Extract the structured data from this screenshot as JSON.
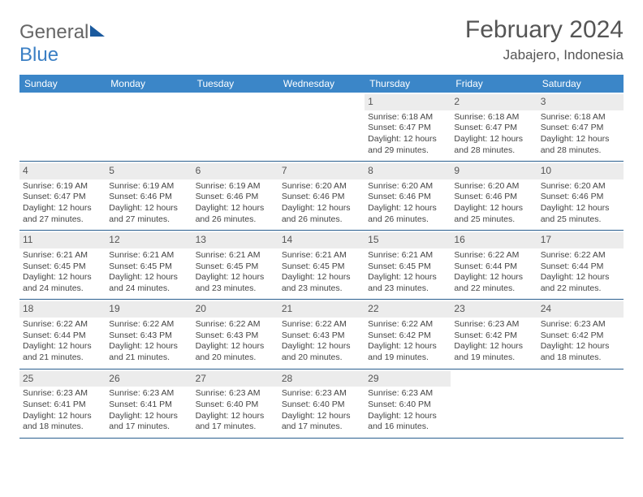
{
  "logo": {
    "text1": "General",
    "text2": "Blue"
  },
  "title": "February 2024",
  "location": "Jabajero, Indonesia",
  "colors": {
    "header_bg": "#3b86c8",
    "header_text": "#ffffff",
    "date_bg": "#ececec",
    "border": "#2a5f8f",
    "body_text": "#444444",
    "page_bg": "#ffffff"
  },
  "day_names": [
    "Sunday",
    "Monday",
    "Tuesday",
    "Wednesday",
    "Thursday",
    "Friday",
    "Saturday"
  ],
  "weeks": [
    [
      null,
      null,
      null,
      null,
      {
        "d": "1",
        "sr": "Sunrise: 6:18 AM",
        "ss": "Sunset: 6:47 PM",
        "dl1": "Daylight: 12 hours",
        "dl2": "and 29 minutes."
      },
      {
        "d": "2",
        "sr": "Sunrise: 6:18 AM",
        "ss": "Sunset: 6:47 PM",
        "dl1": "Daylight: 12 hours",
        "dl2": "and 28 minutes."
      },
      {
        "d": "3",
        "sr": "Sunrise: 6:18 AM",
        "ss": "Sunset: 6:47 PM",
        "dl1": "Daylight: 12 hours",
        "dl2": "and 28 minutes."
      }
    ],
    [
      {
        "d": "4",
        "sr": "Sunrise: 6:19 AM",
        "ss": "Sunset: 6:47 PM",
        "dl1": "Daylight: 12 hours",
        "dl2": "and 27 minutes."
      },
      {
        "d": "5",
        "sr": "Sunrise: 6:19 AM",
        "ss": "Sunset: 6:46 PM",
        "dl1": "Daylight: 12 hours",
        "dl2": "and 27 minutes."
      },
      {
        "d": "6",
        "sr": "Sunrise: 6:19 AM",
        "ss": "Sunset: 6:46 PM",
        "dl1": "Daylight: 12 hours",
        "dl2": "and 26 minutes."
      },
      {
        "d": "7",
        "sr": "Sunrise: 6:20 AM",
        "ss": "Sunset: 6:46 PM",
        "dl1": "Daylight: 12 hours",
        "dl2": "and 26 minutes."
      },
      {
        "d": "8",
        "sr": "Sunrise: 6:20 AM",
        "ss": "Sunset: 6:46 PM",
        "dl1": "Daylight: 12 hours",
        "dl2": "and 26 minutes."
      },
      {
        "d": "9",
        "sr": "Sunrise: 6:20 AM",
        "ss": "Sunset: 6:46 PM",
        "dl1": "Daylight: 12 hours",
        "dl2": "and 25 minutes."
      },
      {
        "d": "10",
        "sr": "Sunrise: 6:20 AM",
        "ss": "Sunset: 6:46 PM",
        "dl1": "Daylight: 12 hours",
        "dl2": "and 25 minutes."
      }
    ],
    [
      {
        "d": "11",
        "sr": "Sunrise: 6:21 AM",
        "ss": "Sunset: 6:45 PM",
        "dl1": "Daylight: 12 hours",
        "dl2": "and 24 minutes."
      },
      {
        "d": "12",
        "sr": "Sunrise: 6:21 AM",
        "ss": "Sunset: 6:45 PM",
        "dl1": "Daylight: 12 hours",
        "dl2": "and 24 minutes."
      },
      {
        "d": "13",
        "sr": "Sunrise: 6:21 AM",
        "ss": "Sunset: 6:45 PM",
        "dl1": "Daylight: 12 hours",
        "dl2": "and 23 minutes."
      },
      {
        "d": "14",
        "sr": "Sunrise: 6:21 AM",
        "ss": "Sunset: 6:45 PM",
        "dl1": "Daylight: 12 hours",
        "dl2": "and 23 minutes."
      },
      {
        "d": "15",
        "sr": "Sunrise: 6:21 AM",
        "ss": "Sunset: 6:45 PM",
        "dl1": "Daylight: 12 hours",
        "dl2": "and 23 minutes."
      },
      {
        "d": "16",
        "sr": "Sunrise: 6:22 AM",
        "ss": "Sunset: 6:44 PM",
        "dl1": "Daylight: 12 hours",
        "dl2": "and 22 minutes."
      },
      {
        "d": "17",
        "sr": "Sunrise: 6:22 AM",
        "ss": "Sunset: 6:44 PM",
        "dl1": "Daylight: 12 hours",
        "dl2": "and 22 minutes."
      }
    ],
    [
      {
        "d": "18",
        "sr": "Sunrise: 6:22 AM",
        "ss": "Sunset: 6:44 PM",
        "dl1": "Daylight: 12 hours",
        "dl2": "and 21 minutes."
      },
      {
        "d": "19",
        "sr": "Sunrise: 6:22 AM",
        "ss": "Sunset: 6:43 PM",
        "dl1": "Daylight: 12 hours",
        "dl2": "and 21 minutes."
      },
      {
        "d": "20",
        "sr": "Sunrise: 6:22 AM",
        "ss": "Sunset: 6:43 PM",
        "dl1": "Daylight: 12 hours",
        "dl2": "and 20 minutes."
      },
      {
        "d": "21",
        "sr": "Sunrise: 6:22 AM",
        "ss": "Sunset: 6:43 PM",
        "dl1": "Daylight: 12 hours",
        "dl2": "and 20 minutes."
      },
      {
        "d": "22",
        "sr": "Sunrise: 6:22 AM",
        "ss": "Sunset: 6:42 PM",
        "dl1": "Daylight: 12 hours",
        "dl2": "and 19 minutes."
      },
      {
        "d": "23",
        "sr": "Sunrise: 6:23 AM",
        "ss": "Sunset: 6:42 PM",
        "dl1": "Daylight: 12 hours",
        "dl2": "and 19 minutes."
      },
      {
        "d": "24",
        "sr": "Sunrise: 6:23 AM",
        "ss": "Sunset: 6:42 PM",
        "dl1": "Daylight: 12 hours",
        "dl2": "and 18 minutes."
      }
    ],
    [
      {
        "d": "25",
        "sr": "Sunrise: 6:23 AM",
        "ss": "Sunset: 6:41 PM",
        "dl1": "Daylight: 12 hours",
        "dl2": "and 18 minutes."
      },
      {
        "d": "26",
        "sr": "Sunrise: 6:23 AM",
        "ss": "Sunset: 6:41 PM",
        "dl1": "Daylight: 12 hours",
        "dl2": "and 17 minutes."
      },
      {
        "d": "27",
        "sr": "Sunrise: 6:23 AM",
        "ss": "Sunset: 6:40 PM",
        "dl1": "Daylight: 12 hours",
        "dl2": "and 17 minutes."
      },
      {
        "d": "28",
        "sr": "Sunrise: 6:23 AM",
        "ss": "Sunset: 6:40 PM",
        "dl1": "Daylight: 12 hours",
        "dl2": "and 17 minutes."
      },
      {
        "d": "29",
        "sr": "Sunrise: 6:23 AM",
        "ss": "Sunset: 6:40 PM",
        "dl1": "Daylight: 12 hours",
        "dl2": "and 16 minutes."
      },
      null,
      null
    ]
  ]
}
